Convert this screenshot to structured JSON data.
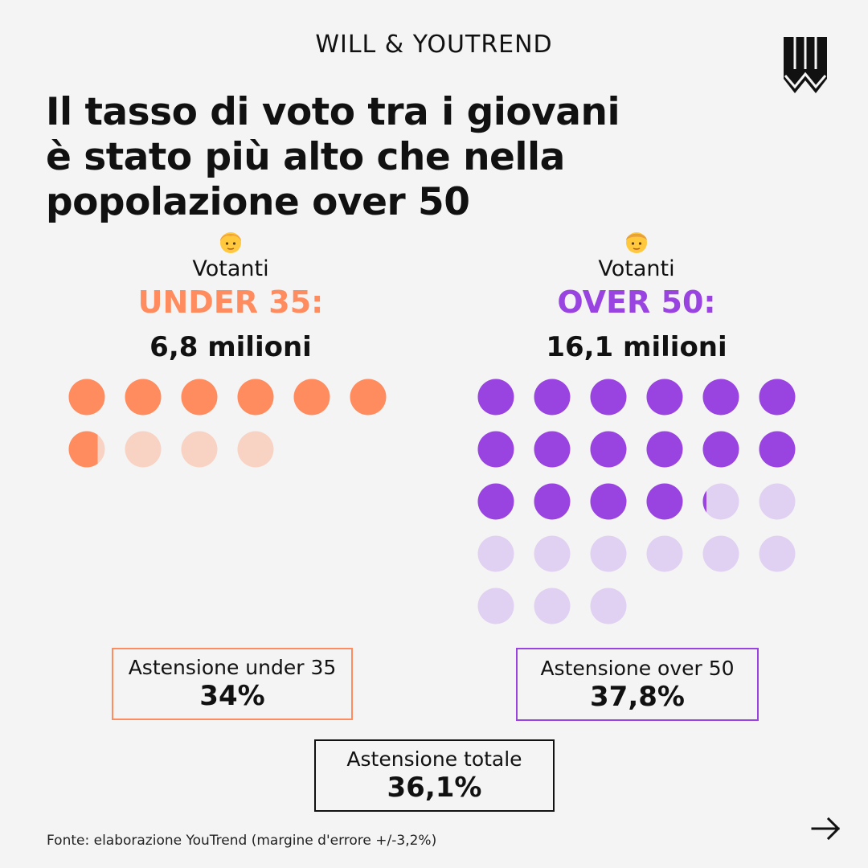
{
  "header": {
    "brand": "WILL & YOUTREND"
  },
  "title_lines": [
    "Il tasso di voto tra i giovani",
    "è stato più alto che nella",
    "popolazione over 50"
  ],
  "colors": {
    "under_full": "#ff8c5f",
    "under_light": "#f8d2c3",
    "over_full": "#9944e0",
    "over_light": "#e0d0f1"
  },
  "chart_data": {
    "type": "waffle",
    "unit": "1 milione",
    "groups": [
      {
        "emoji_icon": "young-person-emoji-icon",
        "label": "Votanti",
        "group_name": "UNDER 35:",
        "voters_text": "6,8 milioni",
        "voters_millions": 6.8,
        "total_dots": 10,
        "per_row": 6
      },
      {
        "emoji_icon": "older-man-emoji-icon",
        "label": "Votanti",
        "group_name": "OVER 50:",
        "voters_text": "16,1 milioni",
        "voters_millions": 16.1,
        "total_dots": 27,
        "per_row": 6
      }
    ]
  },
  "abstention": {
    "under": {
      "label": "Astensione under 35",
      "value": "34%"
    },
    "over": {
      "label": "Astensione over 50",
      "value": "37,8%"
    },
    "total": {
      "label": "Astensione totale",
      "value": "36,1%"
    }
  },
  "footer": {
    "source": "Fonte: elaborazione YouTrend (margine d'errore +/-3,2%)",
    "next_icon": "arrow-right-icon"
  }
}
